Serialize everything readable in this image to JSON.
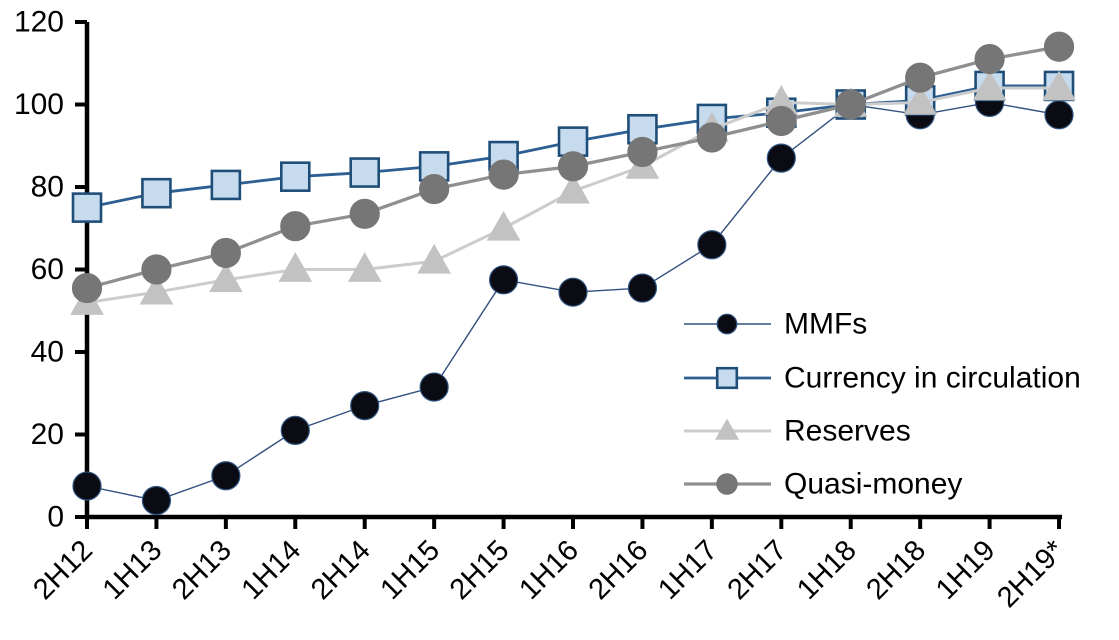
{
  "chart_data": {
    "type": "line",
    "title": "",
    "xlabel": "",
    "ylabel": "",
    "categories": [
      "2H12",
      "1H13",
      "2H13",
      "1H14",
      "2H14",
      "1H15",
      "2H15",
      "1H16",
      "2H16",
      "1H17",
      "2H17",
      "1H18",
      "2H18",
      "1H19",
      "2H19*"
    ],
    "series": [
      {
        "name": "MMFs",
        "marker": "circle",
        "marker_fill": "#0b0b13",
        "marker_stroke": "#2f5380",
        "line_color": "#33507e",
        "line_width": 1.4,
        "marker_size": 28,
        "values": [
          7.5,
          4,
          10,
          21,
          27,
          31.5,
          57.5,
          54.5,
          55.5,
          66,
          87,
          100,
          97.5,
          100.5,
          97.5
        ]
      },
      {
        "name": "Currency in circulation",
        "marker": "square",
        "marker_fill": "#c7dbee",
        "marker_stroke": "#1f4e79",
        "line_color": "#2d5f92",
        "line_width": 2.8,
        "marker_size": 28,
        "values": [
          75,
          78.5,
          80.5,
          82.5,
          83.5,
          85,
          87.5,
          91,
          94,
          96.5,
          98,
          100,
          101,
          104.5,
          104.5
        ]
      },
      {
        "name": "Reserves",
        "marker": "triangle",
        "marker_fill": "#c2c2c2",
        "marker_stroke": "#c2c2c2",
        "line_color": "#cccccc",
        "line_width": 3,
        "marker_size": 32,
        "values": [
          52,
          54.5,
          57.5,
          60,
          60,
          62,
          70,
          79,
          85,
          94,
          100.5,
          100,
          100.5,
          104,
          104
        ]
      },
      {
        "name": "Quasi-money",
        "marker": "circle",
        "marker_fill": "#767676",
        "marker_stroke": "#767676",
        "line_color": "#8f8f8f",
        "line_width": 3.3,
        "marker_size": 29,
        "values": [
          55.5,
          60,
          64,
          70.5,
          73.5,
          79.5,
          83,
          85,
          88.5,
          92,
          96,
          100,
          106.5,
          111,
          114
        ]
      }
    ],
    "ylim": [
      0,
      120
    ],
    "yticks": [
      0,
      20,
      40,
      60,
      80,
      100,
      120
    ],
    "grid": false,
    "legend_position": "middle-right",
    "axis_color": "#000000",
    "background_color": "#ffffff"
  }
}
